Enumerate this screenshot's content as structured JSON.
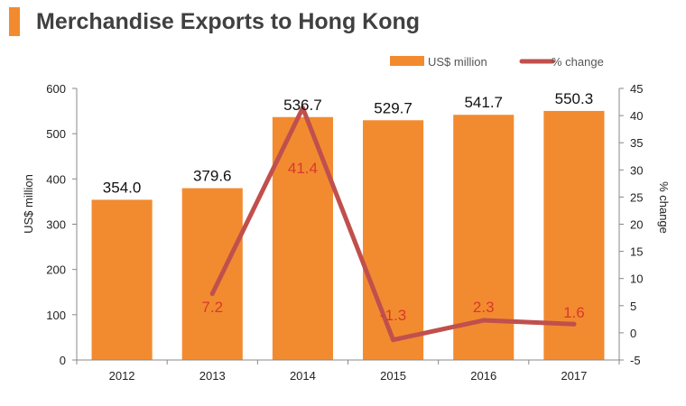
{
  "page": {
    "title": "Merchandise Exports to Hong Kong"
  },
  "colors": {
    "accent": "#f28b30",
    "bar": "#f28b30",
    "line": "#c0504d",
    "pct_label": "#d8392b",
    "axis": "#888888",
    "title": "#404040"
  },
  "chart_data": {
    "type": "bar",
    "title": "Merchandise Exports to Hong Kong",
    "categories": [
      "2012",
      "2013",
      "2014",
      "2015",
      "2016",
      "2017"
    ],
    "series": [
      {
        "name": "US$ million",
        "type": "bar",
        "axis": "left",
        "values": [
          354.0,
          379.6,
          536.7,
          529.7,
          541.7,
          550.3
        ],
        "labels": [
          "354.0",
          "379.6",
          "536.7",
          "529.7",
          "541.7",
          "550.3"
        ]
      },
      {
        "name": "% change",
        "type": "line",
        "axis": "right",
        "values": [
          null,
          7.2,
          41.4,
          -1.3,
          2.3,
          1.6
        ],
        "labels": [
          "",
          "7.2",
          "41.4",
          "-1.3",
          "2.3",
          "1.6"
        ]
      }
    ],
    "ylabel": "US$ million",
    "y2label": "% change",
    "ylim": [
      0,
      600
    ],
    "y2lim": [
      -5,
      45
    ],
    "yticks": [
      "0",
      "100",
      "200",
      "300",
      "400",
      "500",
      "600"
    ],
    "y2ticks": [
      "-5",
      "0",
      "5",
      "10",
      "15",
      "20",
      "25",
      "30",
      "35",
      "40",
      "45"
    ],
    "legend_position": "top-right",
    "grid": false
  }
}
